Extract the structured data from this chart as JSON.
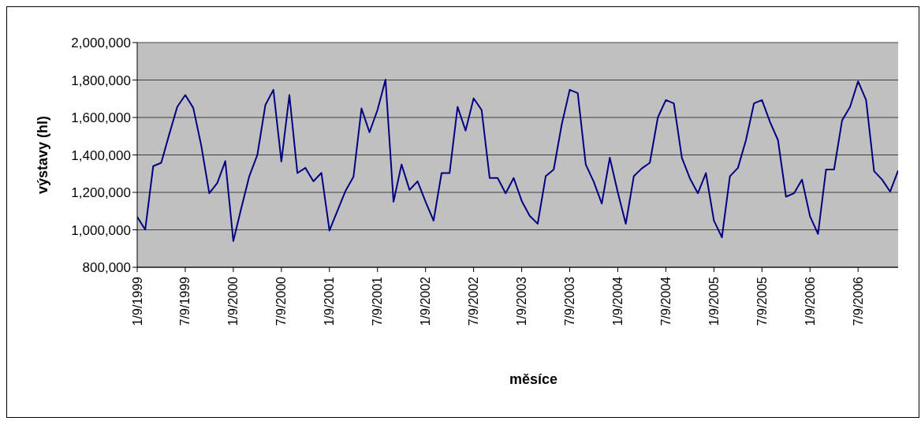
{
  "chart_data": {
    "type": "line",
    "xlabel": "měsíce",
    "ylabel": "výstavy (hl)",
    "categories": [
      "1/9/1999",
      null,
      null,
      null,
      null,
      null,
      "7/9/1999",
      null,
      null,
      null,
      null,
      null,
      "1/9/2000",
      null,
      null,
      null,
      null,
      null,
      "7/9/2000",
      null,
      null,
      null,
      null,
      null,
      "1/9/2001",
      null,
      null,
      null,
      null,
      null,
      "7/9/2001",
      null,
      null,
      null,
      null,
      null,
      "1/9/2002",
      null,
      null,
      null,
      null,
      null,
      "7/9/2002",
      null,
      null,
      null,
      null,
      null,
      "1/9/2003",
      null,
      null,
      null,
      null,
      null,
      "7/9/2003",
      null,
      null,
      null,
      null,
      null,
      "1/9/2004",
      null,
      null,
      null,
      null,
      null,
      "7/9/2004",
      null,
      null,
      null,
      null,
      null,
      "1/9/2005",
      null,
      null,
      null,
      null,
      null,
      "7/9/2005",
      null,
      null,
      null,
      null,
      null,
      "1/9/2006",
      null,
      null,
      null,
      null,
      null,
      "7/9/2006",
      null,
      null,
      null,
      null,
      null
    ],
    "series": [
      {
        "color": "#000080",
        "values": [
          1069000,
          1001000,
          1340000,
          1358000,
          1510000,
          1657000,
          1720000,
          1651000,
          1449000,
          1195000,
          1250000,
          1367000,
          940000,
          1117000,
          1287000,
          1400000,
          1666000,
          1748000,
          1365000,
          1720000,
          1303000,
          1331000,
          1259000,
          1304000,
          996000,
          1102000,
          1207000,
          1283000,
          1648000,
          1521000,
          1640000,
          1802000,
          1150000,
          1349000,
          1213000,
          1259000,
          1150000,
          1049000,
          1303000,
          1303000,
          1657000,
          1530000,
          1702000,
          1640000,
          1277000,
          1277000,
          1195000,
          1277000,
          1155000,
          1075000,
          1032000,
          1286000,
          1322000,
          1562000,
          1748000,
          1730000,
          1349000,
          1256000,
          1140000,
          1385000,
          1200000,
          1032000,
          1286000,
          1328000,
          1358000,
          1600000,
          1693000,
          1675000,
          1385000,
          1275000,
          1195000,
          1303000,
          1049000,
          960000,
          1286000,
          1331000,
          1479000,
          1675000,
          1693000,
          1576000,
          1479000,
          1177000,
          1195000,
          1268000,
          1072000,
          978000,
          1322000,
          1322000,
          1584000,
          1657000,
          1793000,
          1693000,
          1313000,
          1268000,
          1204000,
          1316000
        ]
      }
    ],
    "ylim": [
      800000,
      2000000
    ],
    "yticks": [
      {
        "value": 800000,
        "label": "800,000"
      },
      {
        "value": 1000000,
        "label": "1,000,000"
      },
      {
        "value": 1200000,
        "label": "1,200,000"
      },
      {
        "value": 1400000,
        "label": "1,400,000"
      },
      {
        "value": 1600000,
        "label": "1,600,000"
      },
      {
        "value": 1800000,
        "label": "1,800,000"
      },
      {
        "value": 2000000,
        "label": "2,000,000"
      }
    ],
    "grid": "y",
    "marker": "none",
    "line_style": "solid"
  }
}
